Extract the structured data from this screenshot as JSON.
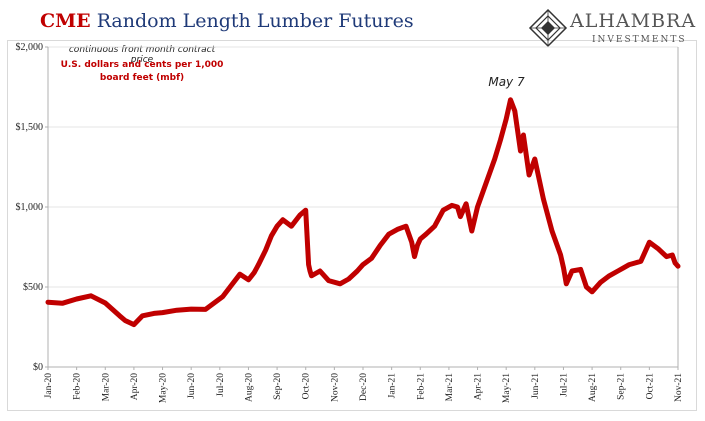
{
  "header": {
    "title_part1": "CME",
    "title_part2": "Random Length Lumber Futures"
  },
  "logo": {
    "name": "ALHAMBRA",
    "subtitle": "INVESTMENTS"
  },
  "notes": {
    "line1": "continuous front month contract price",
    "line2": "U.S. dollars and cents per 1,000",
    "line3": "board feet (mbf)"
  },
  "annotation": {
    "text": "May 7"
  },
  "colors": {
    "series": "#c00000",
    "title_red": "#c00000",
    "title_blue": "#1f3a78",
    "axis": "#b0b0b0"
  },
  "chart_data": {
    "type": "line",
    "title": "CME Random Length Lumber Futures",
    "xlabel": "",
    "ylabel": "",
    "ylim": [
      0,
      2000
    ],
    "yticks": [
      0,
      500,
      1000,
      1500,
      2000
    ],
    "yticklabels": [
      "$0",
      "$500",
      "$1,000",
      "$1,500",
      "$2,000"
    ],
    "grid": true,
    "xticklabels": [
      "Jan-20",
      "Feb-20",
      "Mar-20",
      "Apr-20",
      "May-20",
      "Jun-20",
      "Jul-20",
      "Aug-20",
      "Sep-20",
      "Oct-20",
      "Nov-20",
      "Dec-20",
      "Jan-21",
      "Feb-21",
      "Mar-21",
      "Apr-21",
      "May-21",
      "Jun-21",
      "Jul-21",
      "Aug-21",
      "Sep-21",
      "Oct-21",
      "Nov-21"
    ],
    "series": [
      {
        "x": [
          0,
          0.5,
          1.0,
          1.5,
          2.0,
          2.5,
          2.7,
          3.0,
          3.3,
          3.7,
          4.0,
          4.5,
          5.0,
          5.5,
          5.8,
          6.1,
          6.4,
          6.7,
          7.0,
          7.2,
          7.35,
          7.6,
          7.8,
          8.0,
          8.2,
          8.5,
          8.8,
          9.0,
          9.1,
          9.15,
          9.2,
          9.5,
          9.8,
          10.2,
          10.5,
          10.8,
          11.0,
          11.3,
          11.6,
          11.9,
          12.2,
          12.5,
          12.7,
          12.8,
          12.9,
          13.0,
          13.2,
          13.5,
          13.8,
          14.1,
          14.3,
          14.4,
          14.6,
          14.8,
          15.0,
          15.3,
          15.6,
          15.8,
          16.0,
          16.15,
          16.3,
          16.5,
          16.6,
          16.8,
          17.0,
          17.3,
          17.6,
          17.9,
          18.0,
          18.1,
          18.3,
          18.6,
          18.8,
          19.0,
          19.3,
          19.6,
          19.9,
          20.1,
          20.3,
          20.5,
          20.7,
          21.0,
          21.3,
          21.6,
          21.8,
          21.9,
          22.0
        ],
        "values": [
          405,
          398,
          425,
          445,
          400,
          320,
          290,
          265,
          320,
          335,
          340,
          355,
          362,
          360,
          400,
          440,
          510,
          580,
          545,
          590,
          640,
          730,
          820,
          880,
          920,
          880,
          950,
          980,
          640,
          600,
          570,
          600,
          540,
          520,
          550,
          600,
          640,
          680,
          760,
          830,
          860,
          880,
          780,
          690,
          760,
          800,
          830,
          880,
          980,
          1010,
          1000,
          940,
          1020,
          850,
          1000,
          1150,
          1300,
          1420,
          1550,
          1670,
          1600,
          1350,
          1450,
          1200,
          1300,
          1050,
          850,
          700,
          620,
          520,
          600,
          610,
          500,
          470,
          530,
          570,
          600,
          620,
          640,
          650,
          660,
          780,
          740,
          690,
          700,
          650,
          630
        ]
      }
    ],
    "annotations": [
      {
        "text": "May 7",
        "x": 16.15,
        "y": 1670
      }
    ]
  }
}
